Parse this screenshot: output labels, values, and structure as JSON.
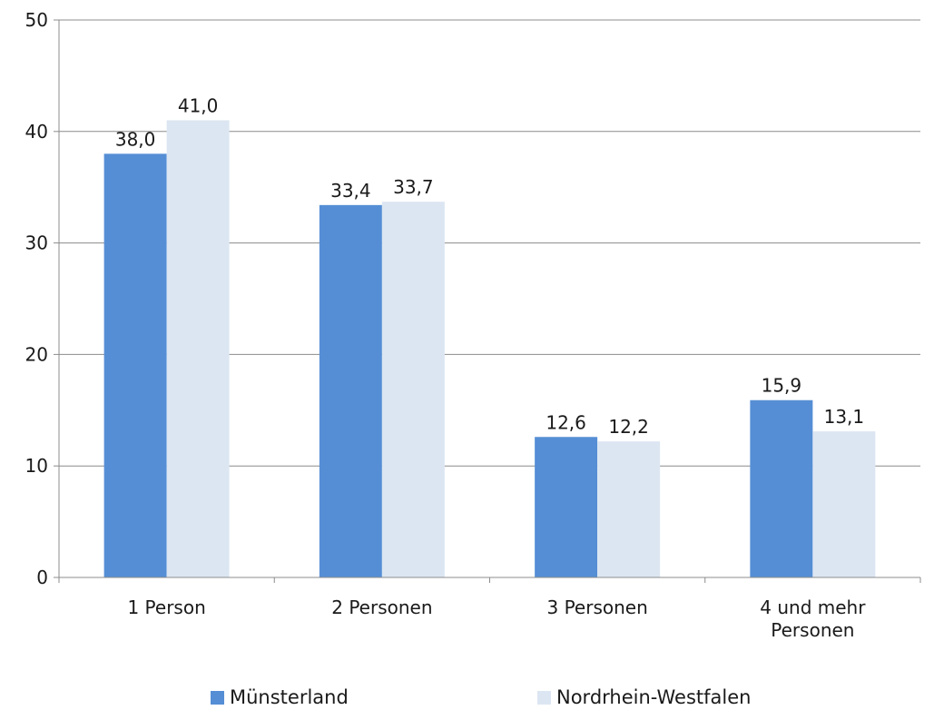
{
  "chart_data": {
    "type": "bar",
    "categories": [
      "1 Person",
      "2 Personen",
      "3 Personen",
      "4 und mehr Personen"
    ],
    "series": [
      {
        "name": "Münsterland",
        "values": [
          38.0,
          33.4,
          12.6,
          15.9
        ],
        "color": "#558ed5"
      },
      {
        "name": "Nordrhein-Westfalen",
        "values": [
          41.0,
          33.7,
          12.2,
          13.1
        ],
        "color": "#dce6f2"
      }
    ],
    "data_labels": [
      [
        "38,0",
        "33,4",
        "12,6",
        "15,9"
      ],
      [
        "41,0",
        "33,7",
        "12,2",
        "13,1"
      ]
    ],
    "category_label_lines": [
      [
        "1 Person"
      ],
      [
        "2 Personen"
      ],
      [
        "3 Personen"
      ],
      [
        "4 und mehr",
        "Personen"
      ]
    ],
    "ylim": [
      0,
      50
    ],
    "yticks": [
      "0",
      "10",
      "20",
      "30",
      "40",
      "50"
    ],
    "grid": true,
    "legend_position": "bottom"
  }
}
